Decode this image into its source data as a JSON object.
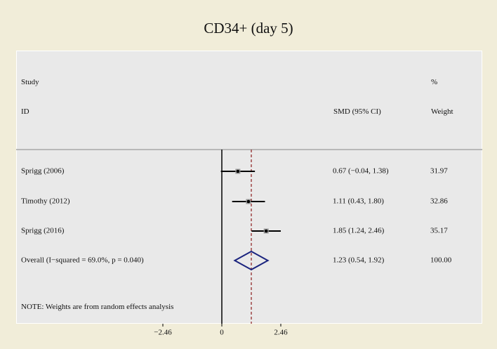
{
  "title": "CD34+ (day 5)",
  "headers": {
    "study_line1": "Study",
    "study_line2": "ID",
    "smd": "SMD (95% CI)",
    "weight_line1": "%",
    "weight_line2": "Weight"
  },
  "note": "NOTE: Weights are from random effects analysis",
  "chart_data": {
    "type": "forest",
    "x_axis": {
      "ticks": [
        -2.46,
        0,
        2.46
      ],
      "tick_labels": [
        "−2.46",
        "0",
        "2.46"
      ],
      "xlim": [
        -2.46,
        2.46
      ]
    },
    "studies": [
      {
        "label": "Sprigg (2006)",
        "smd": 0.67,
        "ci": [
          -0.04,
          1.38
        ],
        "ci_text": "0.67 (−0.04, 1.38)",
        "weight": "31.97"
      },
      {
        "label": "Timothy (2012)",
        "smd": 1.11,
        "ci": [
          0.43,
          1.8
        ],
        "ci_text": "1.11 (0.43, 1.80)",
        "weight": "32.86"
      },
      {
        "label": "Sprigg (2016)",
        "smd": 1.85,
        "ci": [
          1.24,
          2.46
        ],
        "ci_text": "1.85 (1.24, 2.46)",
        "weight": "35.17"
      }
    ],
    "overall": {
      "label": "Overall  (I−squared = 69.0%, p = 0.040)",
      "smd": 1.23,
      "ci": [
        0.54,
        1.92
      ],
      "ci_text": "1.23 (0.54, 1.92)",
      "weight": "100.00"
    },
    "colors": {
      "diamond": "#1a237e",
      "overall_line": "#8b1a1a",
      "line": "#000000",
      "separator": "#b8b8b8"
    }
  }
}
